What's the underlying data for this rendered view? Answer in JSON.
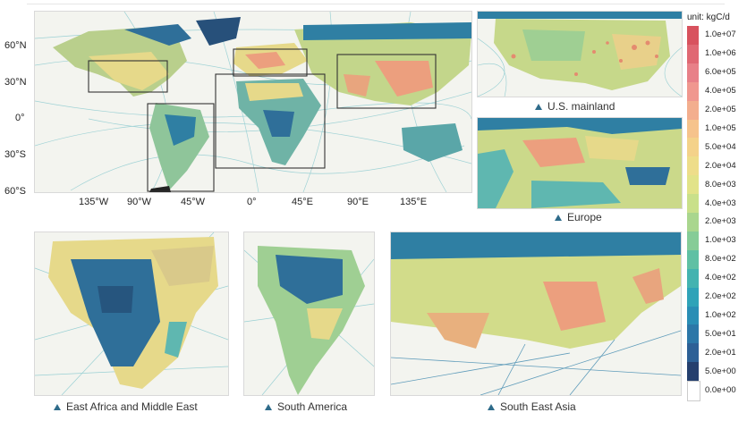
{
  "world_map": {
    "lat_labels": [
      "60°N",
      "30°N",
      "0°",
      "30°S",
      "60°S"
    ],
    "lon_labels": [
      "135°W",
      "90°W",
      "45°W",
      "0°",
      "45°E",
      "90°E",
      "135°E"
    ]
  },
  "insets": [
    {
      "caption": "U.S. mainland"
    },
    {
      "caption": "Europe"
    },
    {
      "caption": "East Africa and Middle East"
    },
    {
      "caption": "South America"
    },
    {
      "caption": "South East Asia"
    }
  ],
  "legend": {
    "title": "unit: kgC/d",
    "entries": [
      {
        "label": "1.0e+07",
        "color": "#d8525e"
      },
      {
        "label": "1.0e+06",
        "color": "#e06873"
      },
      {
        "label": "6.0e+05",
        "color": "#e88088"
      },
      {
        "label": "4.0e+05",
        "color": "#f0978f"
      },
      {
        "label": "2.0e+05",
        "color": "#f3ae8e"
      },
      {
        "label": "1.0e+05",
        "color": "#f6c38c"
      },
      {
        "label": "5.0e+04",
        "color": "#f4d28a"
      },
      {
        "label": "2.0e+04",
        "color": "#eedd8a"
      },
      {
        "label": "8.0e+03",
        "color": "#e2e389"
      },
      {
        "label": "4.0e+03",
        "color": "#c9e08a"
      },
      {
        "label": "2.0e+03",
        "color": "#a9d68e"
      },
      {
        "label": "1.0e+03",
        "color": "#86cc97"
      },
      {
        "label": "8.0e+02",
        "color": "#5fc0a4"
      },
      {
        "label": "4.0e+02",
        "color": "#43b3b0"
      },
      {
        "label": "2.0e+02",
        "color": "#2fa3b8"
      },
      {
        "label": "1.0e+02",
        "color": "#2a8eb5"
      },
      {
        "label": "5.0e+01",
        "color": "#2c77a8"
      },
      {
        "label": "2.0e+01",
        "color": "#2d6096"
      },
      {
        "label": "5.0e+00",
        "color": "#253f6e"
      },
      {
        "label": "0.0e+00",
        "color": "#ffffff"
      }
    ]
  },
  "colors": {
    "ocean": "#f3f4ef",
    "ship_track": "#6cbcc4",
    "land_low": "#2f7fa3",
    "land_mid": "#e8d98a",
    "land_high": "#e48b6f",
    "box_outline": "#333333",
    "marker": "#2e6b8a"
  }
}
